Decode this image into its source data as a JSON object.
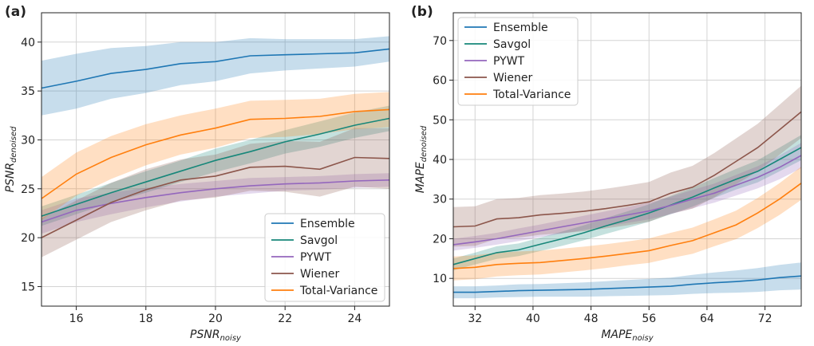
{
  "colors": {
    "Ensemble": "#1f77b4",
    "Savgol": "#17877a",
    "PYWT": "#9467bd",
    "Wiener": "#8c564b",
    "Total-Variance": "#ff7f0e"
  },
  "chart_data": [
    {
      "panel_label": "(a)",
      "type": "line",
      "xlabel_main": "PSNR",
      "xlabel_sub": "noisy",
      "ylabel_main": "PSNR",
      "ylabel_sub": "denoised",
      "xlim": [
        15,
        25
      ],
      "ylim": [
        13,
        43
      ],
      "xticks": [
        16,
        18,
        20,
        22,
        24
      ],
      "yticks": [
        15,
        20,
        25,
        30,
        35,
        40
      ],
      "grid": true,
      "legend_position": "bottom-right",
      "x": [
        15,
        16,
        17,
        18,
        19,
        20,
        21,
        22,
        23,
        24,
        25
      ],
      "series": [
        {
          "name": "Ensemble",
          "values": [
            35.3,
            36.0,
            36.8,
            37.2,
            37.8,
            38.0,
            38.6,
            38.7,
            38.8,
            38.9,
            39.3
          ],
          "band": [
            2.8,
            2.8,
            2.6,
            2.4,
            2.2,
            2.0,
            1.8,
            1.6,
            1.5,
            1.4,
            1.3
          ]
        },
        {
          "name": "Savgol",
          "values": [
            22.2,
            23.4,
            24.6,
            25.7,
            26.8,
            27.9,
            28.8,
            29.8,
            30.6,
            31.5,
            32.2
          ],
          "band": [
            1.0,
            1.0,
            1.0,
            1.1,
            1.1,
            1.2,
            1.2,
            1.2,
            1.3,
            1.3,
            1.3
          ]
        },
        {
          "name": "PYWT",
          "values": [
            21.6,
            22.8,
            23.5,
            24.1,
            24.6,
            25.0,
            25.3,
            25.5,
            25.6,
            25.8,
            25.9
          ],
          "band": [
            1.2,
            1.2,
            1.1,
            1.0,
            0.9,
            0.8,
            0.8,
            0.7,
            0.7,
            0.7,
            0.7
          ]
        },
        {
          "name": "Wiener",
          "values": [
            20.0,
            21.8,
            23.6,
            24.9,
            25.9,
            26.3,
            27.2,
            27.3,
            27.0,
            28.2,
            28.1
          ],
          "band": [
            2.0,
            2.0,
            2.0,
            2.1,
            2.1,
            2.2,
            2.4,
            2.6,
            2.8,
            3.0,
            3.1
          ]
        },
        {
          "name": "Total-Variance",
          "values": [
            24.0,
            26.5,
            28.2,
            29.5,
            30.5,
            31.2,
            32.1,
            32.2,
            32.4,
            32.9,
            33.1
          ],
          "band": [
            2.2,
            2.2,
            2.2,
            2.1,
            2.0,
            2.0,
            1.9,
            1.9,
            1.8,
            1.8,
            1.8
          ]
        }
      ]
    },
    {
      "panel_label": "(b)",
      "type": "line",
      "xlabel_main": "MAPE",
      "xlabel_sub": "noisy",
      "ylabel_main": "MAPE",
      "ylabel_sub": "denoised",
      "xlim": [
        29,
        77
      ],
      "ylim": [
        3,
        77
      ],
      "xticks": [
        32,
        40,
        48,
        56,
        64,
        72
      ],
      "yticks": [
        10,
        20,
        30,
        40,
        50,
        60,
        70
      ],
      "grid": true,
      "legend_position": "top-left",
      "x": [
        29,
        32,
        35,
        38,
        41,
        44,
        47,
        50,
        53,
        56,
        59,
        62,
        65,
        68,
        71,
        74,
        77
      ],
      "series": [
        {
          "name": "Ensemble",
          "values": [
            6.5,
            6.5,
            6.7,
            6.9,
            7.0,
            7.1,
            7.2,
            7.4,
            7.6,
            7.8,
            8.0,
            8.5,
            8.9,
            9.2,
            9.6,
            10.2,
            10.6
          ],
          "band": [
            1.5,
            1.5,
            1.5,
            1.6,
            1.6,
            1.7,
            1.8,
            1.9,
            2.0,
            2.1,
            2.2,
            2.4,
            2.6,
            2.8,
            3.0,
            3.2,
            3.4
          ]
        },
        {
          "name": "Savgol",
          "values": [
            13.5,
            15.0,
            16.5,
            17.2,
            18.6,
            20.0,
            21.5,
            23.2,
            24.8,
            26.5,
            28.5,
            30.5,
            32.8,
            35.0,
            37.0,
            40.0,
            43.0
          ],
          "band": [
            1.5,
            1.5,
            1.6,
            1.6,
            1.7,
            1.8,
            1.9,
            2.0,
            2.1,
            2.2,
            2.3,
            2.4,
            2.5,
            2.6,
            2.8,
            3.0,
            3.2
          ]
        },
        {
          "name": "PYWT",
          "values": [
            18.5,
            19.2,
            20.0,
            21.0,
            22.0,
            23.0,
            24.0,
            25.0,
            26.0,
            27.0,
            28.4,
            30.0,
            31.5,
            33.5,
            35.5,
            38.0,
            41.0
          ],
          "band": [
            1.5,
            1.5,
            1.5,
            1.6,
            1.6,
            1.7,
            1.8,
            1.9,
            2.0,
            2.1,
            2.2,
            2.3,
            2.4,
            2.6,
            2.8,
            3.0,
            3.2
          ]
        },
        {
          "name": "Wiener",
          "values": [
            23.0,
            23.2,
            25.0,
            25.3,
            26.0,
            26.4,
            26.9,
            27.6,
            28.4,
            29.3,
            31.5,
            33.0,
            36.0,
            39.5,
            43.0,
            47.5,
            52.0
          ],
          "band": [
            5.0,
            5.0,
            5.0,
            5.0,
            5.0,
            5.0,
            5.0,
            5.0,
            5.0,
            5.0,
            5.2,
            5.4,
            5.6,
            5.8,
            6.0,
            6.3,
            6.6
          ]
        },
        {
          "name": "Total-Variance",
          "values": [
            12.5,
            12.8,
            13.5,
            13.8,
            14.0,
            14.5,
            15.0,
            15.6,
            16.3,
            17.0,
            18.3,
            19.5,
            21.5,
            23.5,
            26.5,
            30.0,
            34.0
          ],
          "band": [
            3.0,
            3.0,
            3.0,
            3.0,
            3.0,
            3.0,
            3.0,
            3.0,
            3.0,
            3.1,
            3.2,
            3.3,
            3.4,
            3.6,
            3.8,
            4.0,
            4.2
          ]
        }
      ]
    }
  ]
}
